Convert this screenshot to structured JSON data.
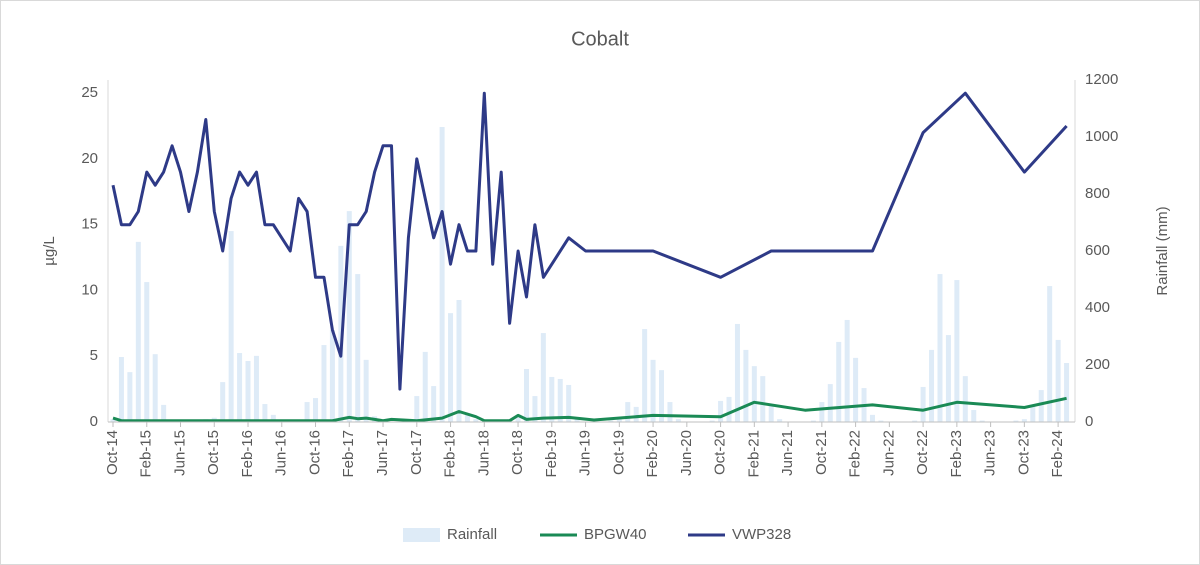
{
  "chart_data": {
    "type": "combo",
    "title": "Cobalt",
    "ylabel": "µg/L",
    "y2label": "Rainfall (mm)",
    "xlim": [
      "Oct-14",
      "Apr-24"
    ],
    "xticks": [
      "Oct-14",
      "Feb-15",
      "Jun-15",
      "Oct-15",
      "Feb-16",
      "Jun-16",
      "Oct-16",
      "Feb-17",
      "Jun-17",
      "Oct-17",
      "Feb-18",
      "Jun-18",
      "Oct-18",
      "Feb-19",
      "Jun-19",
      "Oct-19",
      "Feb-20",
      "Jun-20",
      "Oct-20",
      "Feb-21",
      "Jun-21",
      "Oct-21",
      "Feb-22",
      "Jun-22",
      "Oct-22",
      "Feb-23",
      "Jun-23",
      "Oct-23",
      "Feb-24"
    ],
    "ylim": [
      0,
      26
    ],
    "yticks": [
      0,
      5,
      10,
      15,
      20,
      25
    ],
    "y2lim": [
      0,
      1200
    ],
    "y2ticks": [
      0,
      200,
      400,
      600,
      800,
      1000,
      1200
    ],
    "grid": false,
    "legend": "bottom",
    "series": [
      {
        "name": "Rainfall",
        "type": "bar",
        "axis": "y2",
        "color": "#deebf7",
        "x": [
          "Oct-14",
          "Nov-14",
          "Dec-14",
          "Jan-15",
          "Feb-15",
          "Mar-15",
          "Apr-15",
          "May-15",
          "Jun-15",
          "Jul-15",
          "Aug-15",
          "Sep-15",
          "Oct-15",
          "Nov-15",
          "Dec-15",
          "Jan-16",
          "Feb-16",
          "Mar-16",
          "Apr-16",
          "May-16",
          "Jun-16",
          "Jul-16",
          "Aug-16",
          "Sep-16",
          "Oct-16",
          "Nov-16",
          "Dec-16",
          "Jan-17",
          "Feb-17",
          "Mar-17",
          "Apr-17",
          "May-17",
          "Jun-17",
          "Jul-17",
          "Aug-17",
          "Sep-17",
          "Oct-17",
          "Nov-17",
          "Dec-17",
          "Jan-18",
          "Feb-18",
          "Mar-18",
          "Apr-18",
          "May-18",
          "Jun-18",
          "Jul-18",
          "Aug-18",
          "Sep-18",
          "Oct-18",
          "Nov-18",
          "Dec-18",
          "Jan-19",
          "Feb-19",
          "Mar-19",
          "Apr-19",
          "May-19",
          "Jun-19",
          "Jul-19",
          "Aug-19",
          "Sep-19",
          "Oct-19",
          "Nov-19",
          "Dec-19",
          "Jan-20",
          "Feb-20",
          "Mar-20",
          "Apr-20",
          "May-20",
          "Jun-20",
          "Jul-20",
          "Aug-20",
          "Sep-20",
          "Oct-20",
          "Nov-20",
          "Dec-20",
          "Jan-21",
          "Feb-21",
          "Mar-21",
          "Apr-21",
          "May-21",
          "Jun-21",
          "Jul-21",
          "Aug-21",
          "Sep-21",
          "Oct-21",
          "Nov-21",
          "Dec-21",
          "Jan-22",
          "Feb-22",
          "Mar-22",
          "Apr-22",
          "May-22",
          "Jun-22",
          "Jul-22",
          "Aug-22",
          "Sep-22",
          "Oct-22",
          "Nov-22",
          "Dec-22",
          "Jan-23",
          "Feb-23",
          "Mar-23",
          "Apr-23",
          "May-23",
          "Jun-23",
          "Jul-23",
          "Aug-23",
          "Sep-23",
          "Oct-23",
          "Nov-23",
          "Dec-23",
          "Jan-24",
          "Feb-24",
          "Mar-24"
        ],
        "values": [
          10,
          228,
          175,
          632,
          491,
          238,
          60,
          5,
          0,
          0,
          0,
          10,
          15,
          140,
          670,
          242,
          214,
          232,
          63,
          25,
          5,
          0,
          5,
          70,
          84,
          270,
          323,
          618,
          740,
          519,
          218,
          20,
          5,
          0,
          0,
          10,
          91,
          246,
          126,
          1035,
          382,
          428,
          30,
          10,
          0,
          0,
          5,
          10,
          20,
          186,
          91,
          312,
          158,
          151,
          130,
          10,
          0,
          0,
          0,
          5,
          10,
          70,
          53,
          326,
          218,
          182,
          70,
          10,
          0,
          0,
          0,
          5,
          74,
          88,
          344,
          253,
          196,
          161,
          60,
          10,
          0,
          0,
          0,
          5,
          70,
          133,
          281,
          358,
          225,
          119,
          25,
          5,
          0,
          0,
          0,
          5,
          123,
          253,
          519,
          305,
          498,
          161,
          42,
          5,
          0,
          0,
          0,
          5,
          10,
          60,
          112,
          477,
          288,
          207
        ]
      },
      {
        "name": "BPGW40",
        "type": "line",
        "axis": "y",
        "color": "#1a8a55",
        "x": [
          "Oct-14",
          "Nov-14",
          "Dec-16",
          "Feb-17",
          "Mar-17",
          "Apr-17",
          "May-17",
          "Jun-17",
          "Jul-17",
          "Oct-17",
          "Jan-18",
          "Mar-18",
          "May-18",
          "Jun-18",
          "Sep-18",
          "Oct-18",
          "Nov-18",
          "Jan-19",
          "Apr-19",
          "Jul-19",
          "Feb-20",
          "Oct-20",
          "Feb-21",
          "Aug-21",
          "Apr-22",
          "Oct-22",
          "Feb-23",
          "Oct-23",
          "Mar-24"
        ],
        "values": [
          0.3,
          0.1,
          0.1,
          0.35,
          0.25,
          0.3,
          0.2,
          0.1,
          0.2,
          0.1,
          0.3,
          0.8,
          0.4,
          0.1,
          0.1,
          0.5,
          0.2,
          0.3,
          0.35,
          0.15,
          0.5,
          0.4,
          1.5,
          0.9,
          1.3,
          0.9,
          1.5,
          1.1,
          1.8
        ]
      },
      {
        "name": "VWP328",
        "type": "line",
        "axis": "y",
        "color": "#2e3a87",
        "x": [
          "Oct-14",
          "Nov-14",
          "Dec-14",
          "Jan-15",
          "Feb-15",
          "Mar-15",
          "Apr-15",
          "May-15",
          "Jun-15",
          "Jul-15",
          "Aug-15",
          "Sep-15",
          "Oct-15",
          "Nov-15",
          "Dec-15",
          "Jan-16",
          "Feb-16",
          "Mar-16",
          "Apr-16",
          "May-16",
          "Jul-16",
          "Aug-16",
          "Sep-16",
          "Oct-16",
          "Nov-16",
          "Dec-16",
          "Jan-17",
          "Feb-17",
          "Mar-17",
          "Apr-17",
          "May-17",
          "Jun-17",
          "Jul-17",
          "Aug-17",
          "Sep-17",
          "Oct-17",
          "Nov-17",
          "Dec-17",
          "Jan-18",
          "Feb-18",
          "Mar-18",
          "Apr-18",
          "May-18",
          "Jun-18",
          "Jul-18",
          "Aug-18",
          "Sep-18",
          "Oct-18",
          "Nov-18",
          "Dec-18",
          "Jan-19",
          "Apr-19",
          "Jun-19",
          "Feb-20",
          "Oct-20",
          "Apr-21",
          "Apr-22",
          "Oct-22",
          "Mar-23",
          "Oct-23",
          "Mar-24"
        ],
        "values": [
          18,
          15,
          15,
          16,
          19,
          18,
          19,
          21,
          19,
          16,
          19,
          23,
          16,
          13,
          17,
          19,
          18,
          19,
          15,
          15,
          13,
          17,
          16,
          11,
          11,
          7,
          5,
          15,
          15,
          16,
          19,
          21,
          21,
          2.5,
          14,
          20,
          17,
          14,
          16,
          12,
          15,
          13,
          13,
          25,
          12,
          19,
          7.5,
          13,
          9.5,
          15,
          11,
          14,
          13,
          13,
          11,
          13,
          13,
          22,
          25,
          19,
          22.5
        ]
      }
    ]
  }
}
